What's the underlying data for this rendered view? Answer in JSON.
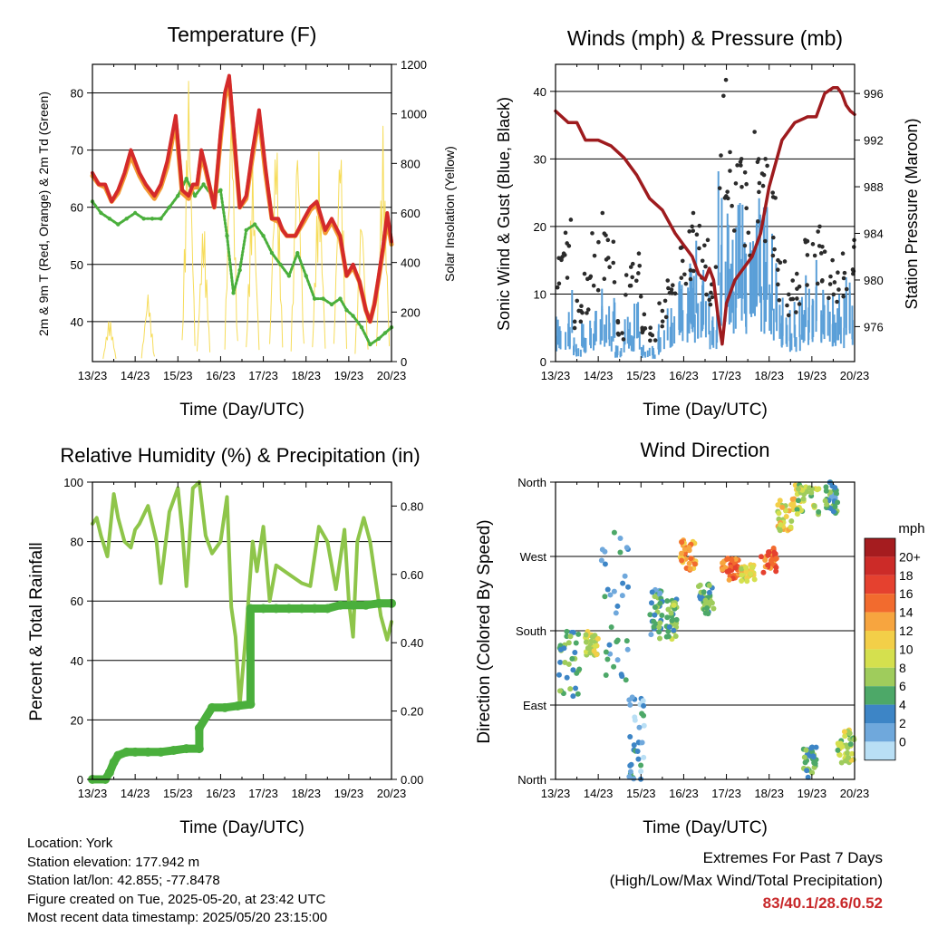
{
  "chart_data": [
    {
      "type": "line",
      "title": "Temperature (F)",
      "xlabel": "Time (Day/UTC)",
      "ylabel": "2m & 9m T (Red, Orange) & 2m Td (Green)",
      "y2label": "Solar Insolation (Yellow)",
      "x_ticks": [
        "13/23",
        "14/23",
        "15/23",
        "16/23",
        "17/23",
        "18/23",
        "19/23",
        "20/23"
      ],
      "ylim": [
        33,
        85
      ],
      "y_ticks": [
        40,
        50,
        60,
        70,
        80
      ],
      "y2lim": [
        0,
        1200
      ],
      "y2_ticks": [
        0,
        200,
        400,
        600,
        800,
        1000,
        1200
      ],
      "grid": "horizontal",
      "series": [
        {
          "color": "#d42a2a",
          "x": [
            0,
            0.15,
            0.3,
            0.45,
            0.6,
            0.75,
            0.9,
            1.1,
            1.25,
            1.45,
            1.6,
            1.75,
            1.95,
            2.1,
            2.25,
            2.35,
            2.45,
            2.55,
            2.65,
            2.85,
            3.0,
            3.1,
            3.2,
            3.3,
            3.45,
            3.6,
            3.75,
            3.9,
            4.05,
            4.2,
            4.35,
            4.45,
            4.55,
            4.75,
            4.95,
            5.1,
            5.25,
            5.45,
            5.6,
            5.8,
            5.95,
            6.1,
            6.25,
            6.4,
            6.5,
            6.6,
            6.7,
            6.8,
            6.9,
            7.0
          ],
          "values": [
            66,
            64,
            64,
            61,
            63,
            66,
            70,
            66,
            64,
            62,
            64,
            68,
            76,
            63,
            62,
            64,
            64,
            70,
            67,
            60,
            73,
            80,
            83,
            74,
            60,
            62,
            70,
            77,
            67,
            58,
            58,
            56,
            55,
            55,
            58,
            60,
            61,
            56,
            58,
            55,
            48,
            50,
            47,
            42,
            40,
            43,
            48,
            53,
            59,
            54
          ]
        },
        {
          "color": "#f39a33",
          "x": [
            0,
            0.15,
            0.3,
            0.45,
            0.6,
            0.75,
            0.9,
            1.1,
            1.25,
            1.45,
            1.6,
            1.75,
            1.95,
            2.1,
            2.25,
            2.35,
            2.45,
            2.55,
            2.65,
            2.85,
            3.0,
            3.1,
            3.2,
            3.3,
            3.45,
            3.6,
            3.75,
            3.9,
            4.05,
            4.2,
            4.35,
            4.45,
            4.55,
            4.75,
            4.95,
            5.1,
            5.25,
            5.45,
            5.6,
            5.8,
            5.95,
            6.1,
            6.25,
            6.4,
            6.5,
            6.6,
            6.7,
            6.8,
            6.9,
            7.0
          ],
          "values": [
            65.5,
            64,
            63.5,
            61,
            62.5,
            65.5,
            69,
            65.5,
            63.5,
            61.5,
            63.5,
            67,
            75,
            62.5,
            61.5,
            63.5,
            63.5,
            69,
            66.5,
            60,
            72,
            79,
            82,
            73,
            60,
            61.5,
            69,
            76,
            66,
            58,
            57.5,
            56,
            55,
            55,
            57.5,
            59.5,
            60.5,
            55.5,
            57.5,
            54.5,
            48,
            49.5,
            47,
            42,
            40,
            43,
            47.5,
            52.5,
            58,
            53.5
          ]
        },
        {
          "color": "#4aaf3c",
          "x": [
            0,
            0.2,
            0.4,
            0.6,
            0.8,
            1.0,
            1.2,
            1.4,
            1.6,
            1.8,
            2.0,
            2.2,
            2.4,
            2.6,
            2.8,
            3.0,
            3.15,
            3.3,
            3.45,
            3.6,
            3.8,
            4.0,
            4.2,
            4.4,
            4.6,
            4.8,
            5.0,
            5.2,
            5.4,
            5.6,
            5.8,
            5.95,
            6.1,
            6.3,
            6.5,
            6.7,
            6.85,
            7.0
          ],
          "values": [
            61,
            59,
            58,
            57,
            58,
            59,
            58,
            58,
            58,
            60,
            62,
            65,
            62,
            64,
            62,
            63,
            55,
            45,
            49,
            56,
            57,
            55,
            52,
            50,
            48,
            52,
            48,
            44,
            44,
            43,
            44,
            42,
            41,
            39,
            36,
            37,
            38,
            39
          ]
        }
      ],
      "solar_insolation_peaks": {
        "x": [
          0.4,
          1.3,
          2.25,
          2.6,
          3.25,
          3.75,
          4.3,
          4.8,
          5.3,
          5.8,
          6.3,
          6.8
        ],
        "values": [
          190,
          290,
          1180,
          620,
          1100,
          820,
          1000,
          960,
          850,
          980,
          660,
          950
        ]
      }
    },
    {
      "type": "scatter",
      "title": "Winds (mph) & Pressure (mb)",
      "xlabel": "Time (Day/UTC)",
      "ylabel": "Sonic Wind & Gust (Blue, Black)",
      "y2label": "Station Pressure (Maroon)",
      "x_ticks": [
        "13/23",
        "14/23",
        "15/23",
        "16/23",
        "17/23",
        "18/23",
        "19/23",
        "20/23"
      ],
      "ylim": [
        0,
        44
      ],
      "y_ticks": [
        0,
        10,
        20,
        30,
        40
      ],
      "y2lim": [
        973,
        998.5
      ],
      "y2_ticks": [
        976,
        980,
        984,
        988,
        992,
        996
      ],
      "grid": "horizontal",
      "series": [
        {
          "color": "#9e1b1e",
          "x": [
            0,
            0.3,
            0.5,
            0.7,
            1.0,
            1.3,
            1.6,
            1.9,
            2.2,
            2.5,
            2.8,
            3.0,
            3.2,
            3.35,
            3.5,
            3.6,
            3.7,
            3.8,
            3.9,
            4.0,
            4.2,
            4.4,
            4.6,
            4.8,
            5.0,
            5.3,
            5.6,
            5.9,
            6.1,
            6.3,
            6.5,
            6.6,
            6.7,
            6.8,
            6.9,
            7.0
          ],
          "values": [
            994.5,
            993.5,
            993.5,
            992,
            992,
            991.5,
            990.5,
            989,
            987,
            986,
            984,
            983,
            982,
            980.5,
            980,
            981,
            980,
            977,
            974.5,
            978,
            980,
            981,
            982,
            984,
            988,
            992,
            993.5,
            994,
            994,
            996,
            996.5,
            996.5,
            996,
            995,
            994.5,
            994.2
          ]
        },
        {
          "color": "#2b2b2b",
          "x": [
            0.1,
            0.3,
            0.5,
            0.7,
            0.9,
            1.1,
            1.3,
            1.5,
            1.7,
            1.9,
            2.1,
            2.3,
            2.5,
            2.7,
            2.9,
            3.1,
            3.3,
            3.5,
            3.7,
            3.9,
            4.1,
            4.3,
            4.5,
            4.7,
            4.9,
            5.1,
            5.3,
            5.5,
            5.7,
            5.9,
            6.1,
            6.3,
            6.5,
            6.7,
            6.9
          ],
          "values": [
            16,
            21,
            9,
            13,
            19,
            22,
            18,
            6,
            14,
            16,
            7,
            5,
            9,
            12,
            17,
            20,
            22,
            18,
            14,
            41.7,
            31,
            30,
            28,
            34,
            30,
            25,
            15,
            12,
            13,
            18,
            20,
            17,
            15,
            16,
            18
          ]
        },
        {
          "color": "#5a9fd8",
          "x": [
            0.1,
            0.3,
            0.5,
            0.7,
            0.9,
            1.1,
            1.3,
            1.5,
            1.7,
            1.9,
            2.1,
            2.3,
            2.5,
            2.7,
            2.9,
            3.1,
            3.3,
            3.5,
            3.7,
            3.9,
            4.1,
            4.3,
            4.5,
            4.7,
            4.9,
            5.1,
            5.3,
            5.5,
            5.7,
            5.9,
            6.1,
            6.3,
            6.5,
            6.7,
            6.9
          ],
          "values": [
            6,
            9,
            3,
            5,
            8,
            10,
            8,
            2,
            6,
            8,
            3,
            2,
            5,
            7,
            10,
            14,
            15,
            12,
            8,
            28,
            22,
            20,
            18,
            24,
            20,
            16,
            10,
            8,
            8,
            11,
            13,
            10,
            9,
            10,
            12
          ]
        }
      ]
    },
    {
      "type": "line",
      "title": "Relative Humidity (%) & Precipitation (in)",
      "xlabel": "Time (Day/UTC)",
      "ylabel": "Percent & Total Rainfall",
      "x_ticks": [
        "13/23",
        "14/23",
        "15/23",
        "16/23",
        "17/23",
        "18/23",
        "19/23",
        "20/23"
      ],
      "ylim": [
        0,
        100
      ],
      "y_ticks": [
        0,
        20,
        40,
        60,
        80,
        100
      ],
      "y2lim": [
        0,
        0.87
      ],
      "y2_ticks": [
        0.0,
        0.2,
        0.4,
        0.6,
        0.8
      ],
      "y2_tick_labels": [
        "0.00",
        "0.20",
        "0.40",
        "0.60",
        "0.80"
      ],
      "grid": "horizontal",
      "series": [
        {
          "color": "#8ec54a",
          "x": [
            0,
            0.1,
            0.2,
            0.35,
            0.5,
            0.6,
            0.75,
            0.9,
            1.0,
            1.1,
            1.3,
            1.5,
            1.6,
            1.8,
            2.0,
            2.1,
            2.2,
            2.35,
            2.5,
            2.65,
            2.8,
            3.0,
            3.15,
            3.25,
            3.35,
            3.45,
            3.6,
            3.75,
            3.85,
            4.0,
            4.15,
            4.3,
            4.5,
            4.7,
            4.9,
            5.1,
            5.3,
            5.5,
            5.7,
            5.9,
            6.0,
            6.1,
            6.2,
            6.35,
            6.5,
            6.6,
            6.75,
            6.9,
            7.0
          ],
          "values": [
            86,
            88,
            82,
            75,
            96,
            88,
            80,
            78,
            84,
            86,
            92,
            80,
            66,
            90,
            98,
            84,
            65,
            98,
            100,
            82,
            76,
            80,
            95,
            58,
            48,
            25,
            50,
            80,
            70,
            85,
            60,
            72,
            70,
            68,
            66,
            65,
            85,
            80,
            64,
            84,
            60,
            48,
            80,
            88,
            80,
            70,
            55,
            47,
            53
          ]
        },
        {
          "color": "#4aaf3c",
          "x": [
            0,
            0.3,
            0.4,
            0.5,
            0.6,
            0.8,
            1.0,
            1.3,
            1.6,
            1.9,
            2.2,
            2.5,
            2.5,
            2.8,
            3.1,
            3.4,
            3.7,
            3.7,
            4.0,
            4.3,
            4.6,
            4.9,
            5.2,
            5.5,
            5.8,
            6.1,
            6.4,
            6.7,
            7.0
          ],
          "values": [
            0.0,
            0.0,
            0.02,
            0.05,
            0.07,
            0.08,
            0.08,
            0.08,
            0.08,
            0.085,
            0.09,
            0.09,
            0.15,
            0.21,
            0.21,
            0.215,
            0.22,
            0.5,
            0.5,
            0.5,
            0.5,
            0.5,
            0.5,
            0.5,
            0.51,
            0.51,
            0.51,
            0.515,
            0.515
          ]
        }
      ]
    },
    {
      "type": "scatter",
      "title": "Wind Direction",
      "xlabel": "Time (Day/UTC)",
      "ylabel": "Direction (Colored By Speed)",
      "x_ticks": [
        "13/23",
        "14/23",
        "15/23",
        "16/23",
        "17/23",
        "18/23",
        "19/23",
        "20/23"
      ],
      "y_ticks": [
        "North",
        "East",
        "South",
        "West",
        "North"
      ],
      "ylim": [
        0,
        360
      ],
      "grid": "horizontal",
      "colorbar": {
        "title": "mph",
        "labels": [
          "20+",
          "18",
          "16",
          "14",
          "12",
          "10",
          "8",
          "6",
          "4",
          "2",
          "0"
        ],
        "colors": [
          "#a51c1f",
          "#cc2b28",
          "#e5412f",
          "#f26b2e",
          "#f7a53f",
          "#f3cf48",
          "#d5e04e",
          "#9fcc5c",
          "#4da868",
          "#3d85c6",
          "#6fa8dc",
          "#b9dff5"
        ]
      },
      "clusters": [
        {
          "x": [
            0.05,
            0.6
          ],
          "y": [
            100,
            180
          ],
          "speed": 6
        },
        {
          "x": [
            0.7,
            1.0
          ],
          "y": [
            150,
            180
          ],
          "speed": 10
        },
        {
          "x": [
            1.0,
            1.7
          ],
          "y": [
            120,
            300
          ],
          "speed": 4
        },
        {
          "x": [
            1.7,
            2.1
          ],
          "y": [
            0,
            100
          ],
          "speed": 3
        },
        {
          "x": [
            2.2,
            2.5
          ],
          "y": [
            170,
            230
          ],
          "speed": 5
        },
        {
          "x": [
            2.6,
            2.9
          ],
          "y": [
            170,
            220
          ],
          "speed": 7
        },
        {
          "x": [
            2.9,
            3.3
          ],
          "y": [
            250,
            290
          ],
          "speed": 14
        },
        {
          "x": [
            3.35,
            3.7
          ],
          "y": [
            200,
            240
          ],
          "speed": 6
        },
        {
          "x": [
            3.9,
            4.3
          ],
          "y": [
            240,
            270
          ],
          "speed": 16
        },
        {
          "x": [
            4.3,
            4.7
          ],
          "y": [
            240,
            260
          ],
          "speed": 11
        },
        {
          "x": [
            4.8,
            5.2
          ],
          "y": [
            250,
            280
          ],
          "speed": 16
        },
        {
          "x": [
            5.2,
            5.6
          ],
          "y": [
            300,
            340
          ],
          "speed": 11
        },
        {
          "x": [
            5.6,
            6.2
          ],
          "y": [
            320,
            360
          ],
          "speed": 9
        },
        {
          "x": [
            6.3,
            6.6
          ],
          "y": [
            320,
            360
          ],
          "speed": 5
        },
        {
          "x": [
            6.6,
            7.0
          ],
          "y": [
            20,
            60
          ],
          "speed": 9
        },
        {
          "x": [
            5.8,
            6.1
          ],
          "y": [
            0,
            40
          ],
          "speed": 6
        }
      ]
    }
  ],
  "station_info": {
    "location": "Location: York",
    "elevation": "Station elevation: 177.942 m",
    "latlon": "Station lat/lon: 42.855; -77.8478",
    "created": "Figure created on Tue, 2025-05-20, at 23:42 UTC",
    "recent": "Most recent data timestamp: 2025/05/20 23:15:00"
  },
  "extremes": {
    "title": "Extremes For Past 7 Days",
    "subtitle": "(High/Low/Max Wind/Total Precipitation)",
    "values": "83/40.1/28.6/0.52"
  }
}
